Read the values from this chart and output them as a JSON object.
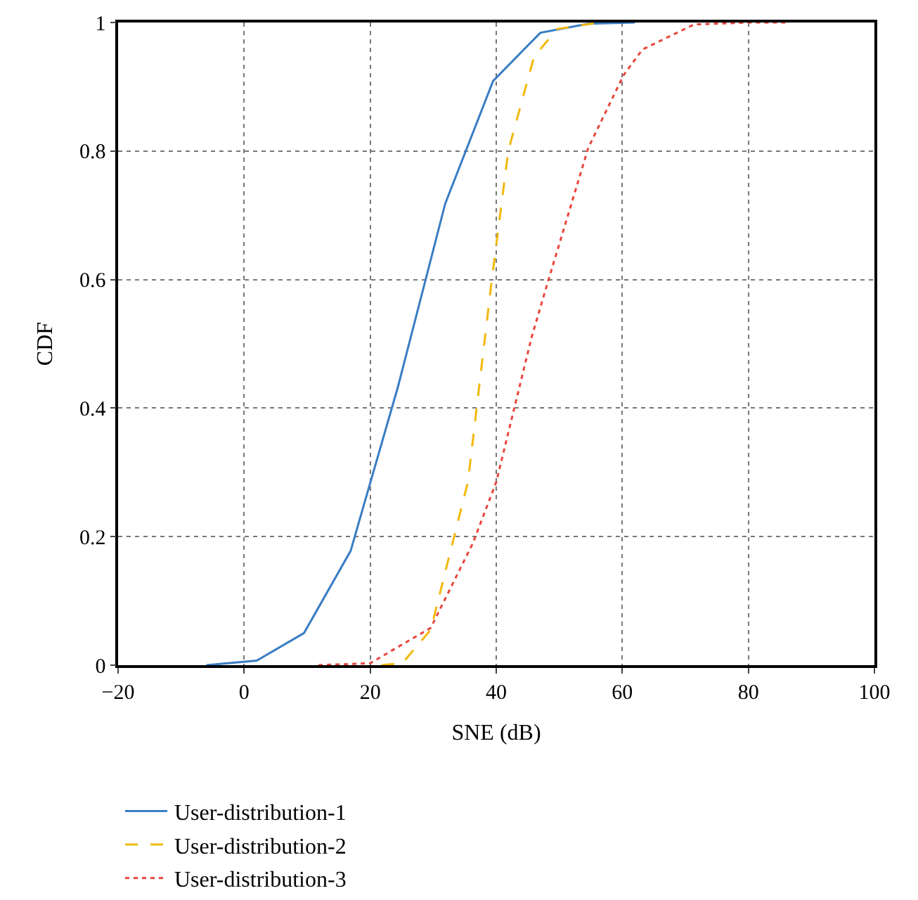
{
  "chart_data": {
    "type": "line",
    "xlabel": "SNE (dB)",
    "ylabel": "CDF",
    "xlim": [
      -20,
      100
    ],
    "ylim": [
      0,
      1
    ],
    "xticks": [
      {
        "value": -20,
        "label": "−20"
      },
      0,
      20,
      40,
      60,
      80,
      100
    ],
    "yticks": [
      0,
      0.2,
      0.4,
      0.6,
      0.8,
      1
    ],
    "grid": true,
    "legend": "bottom",
    "marker": "none",
    "series": [
      {
        "name": "User-distribution-1",
        "color": "#3a7dc4",
        "line_style": "solid",
        "x": [
          -6,
          2,
          9.5,
          16.9,
          24.4,
          31.9,
          39.5,
          47,
          54.6,
          62
        ],
        "values": [
          0,
          0.007,
          0.05,
          0.178,
          0.433,
          0.718,
          0.909,
          0.984,
          0.998,
          1
        ]
      },
      {
        "name": "User-distribution-2",
        "color": "#f2b90f",
        "line_style": "dashed",
        "x": [
          21.8,
          25.1,
          29.6,
          35.5,
          39.3,
          41.9,
          46,
          49.7,
          56.4
        ],
        "values": [
          0,
          0.003,
          0.055,
          0.285,
          0.6,
          0.8,
          0.947,
          0.99,
          1
        ]
      },
      {
        "name": "User-distribution-3",
        "color": "#e8463c",
        "line_style": "dotted",
        "x": [
          11.8,
          20,
          29.6,
          36.3,
          40,
          45.6,
          48.3,
          54.6,
          60.2,
          63.2,
          71.4,
          80.2,
          86
        ],
        "values": [
          0,
          0.003,
          0.058,
          0.19,
          0.285,
          0.51,
          0.6,
          0.805,
          0.918,
          0.958,
          0.997,
          1,
          1
        ]
      }
    ]
  }
}
